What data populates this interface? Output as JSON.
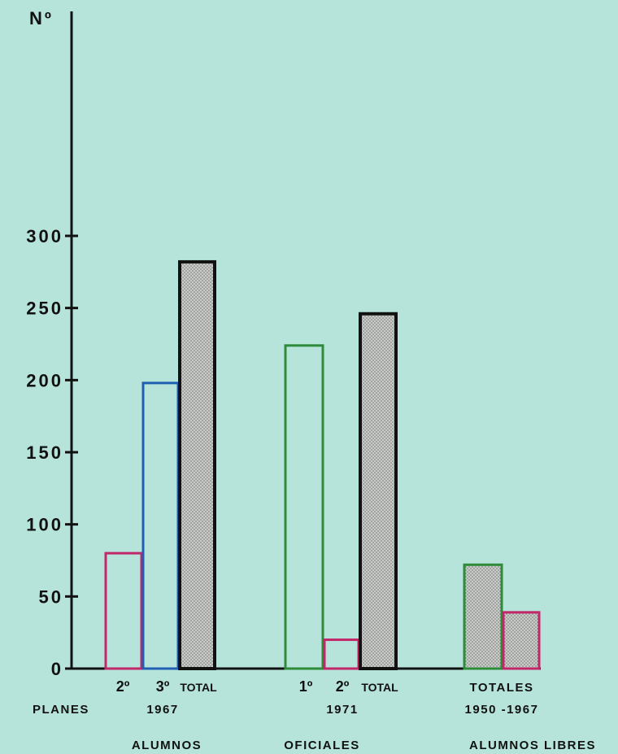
{
  "chart_data": {
    "type": "bar",
    "ylabel": "Nº",
    "ylim": [
      0,
      300
    ],
    "yticks": [
      0,
      50,
      100,
      150,
      200,
      250,
      300
    ],
    "colors": {
      "background": "#b7e4da",
      "axis": "#111111",
      "magenta": "#c2276a",
      "blue": "#1f5fb3",
      "green": "#2e8b3a",
      "total_fill": "#c9ccc9"
    },
    "bars": [
      {
        "group": "ALUMNOS OFICIALES 1967",
        "label": "2º",
        "value": 80,
        "stroke": "magenta",
        "fill": "none"
      },
      {
        "group": "ALUMNOS OFICIALES 1967",
        "label": "3º",
        "value": 198,
        "stroke": "blue",
        "fill": "none"
      },
      {
        "group": "ALUMNOS OFICIALES 1967",
        "label": "TOTAL",
        "value": 282,
        "stroke": "black",
        "fill": "dotted"
      },
      {
        "group": "ALUMNOS OFICIALES 1971",
        "label": "1º",
        "value": 224,
        "stroke": "green",
        "fill": "none"
      },
      {
        "group": "ALUMNOS OFICIALES 1971",
        "label": "2º",
        "value": 20,
        "stroke": "magenta",
        "fill": "none"
      },
      {
        "group": "ALUMNOS OFICIALES 1971",
        "label": "TOTAL",
        "value": 246,
        "stroke": "black",
        "fill": "dotted"
      },
      {
        "group": "ALUMNOS LIBRES 1950-1967",
        "label": "TOTALES",
        "value": 72,
        "stroke": "green",
        "fill": "dotted"
      },
      {
        "group": "ALUMNOS LIBRES 1950-1967",
        "label": "TOTALES",
        "value": 39,
        "stroke": "magenta",
        "fill": "dotted"
      }
    ],
    "labels": {
      "planes": "PLANES",
      "g1_a": "2º",
      "g1_b": "3º",
      "g1_total": "TOTAL",
      "g1_year": "1967",
      "g2_a": "1º",
      "g2_b": "2º",
      "g2_total": "TOTAL",
      "g2_year": "1971",
      "g3_totales": "TOTALES",
      "g3_years": "1950 -1967",
      "alumnos": "ALUMNOS",
      "oficiales": "OFICIALES",
      "alumnos_libres": "ALUMNOS LIBRES"
    }
  }
}
